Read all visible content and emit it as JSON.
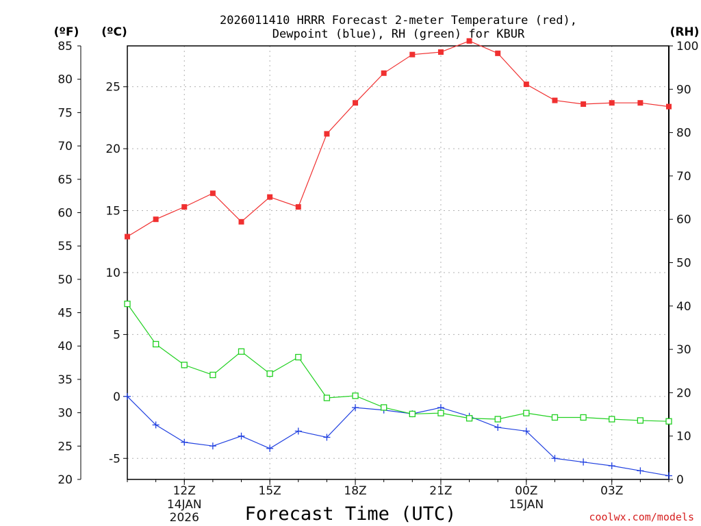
{
  "chart_data": {
    "type": "line",
    "title_lines": [
      "2026011410 HRRR Forecast 2-meter Temperature (red),",
      "Dewpoint (blue), RH (green) for KBUR"
    ],
    "xlabel": "Forecast Time (UTC)",
    "credit": "coolwx.com/models",
    "units": {
      "fahrenheit": "(ºF)",
      "celsius": "(ºC)",
      "rh": "(RH)"
    },
    "x_hours": [
      10,
      11,
      12,
      13,
      14,
      15,
      16,
      17,
      18,
      19,
      20,
      21,
      22,
      23,
      24,
      25,
      26,
      27,
      28,
      29
    ],
    "xlim": [
      10,
      29
    ],
    "celsius_axis": {
      "ylim": [
        -6.7,
        28.3
      ],
      "ticks": [
        -5,
        0,
        5,
        10,
        15,
        20,
        25
      ]
    },
    "fahrenheit_axis": {
      "ylim": [
        20,
        85
      ],
      "ticks": [
        20,
        25,
        30,
        35,
        40,
        45,
        50,
        55,
        60,
        65,
        70,
        75,
        80,
        85
      ]
    },
    "rh_axis": {
      "ylim": [
        0,
        100
      ],
      "ticks": [
        0,
        10,
        20,
        30,
        40,
        50,
        60,
        70,
        80,
        90,
        100
      ]
    },
    "x_ticks": [
      {
        "hour": 12,
        "line1": "12Z",
        "line2": "14JAN",
        "line3": "2026"
      },
      {
        "hour": 15,
        "line1": "15Z",
        "line2": "",
        "line3": ""
      },
      {
        "hour": 18,
        "line1": "18Z",
        "line2": "",
        "line3": ""
      },
      {
        "hour": 21,
        "line1": "21Z",
        "line2": "",
        "line3": ""
      },
      {
        "hour": 24,
        "line1": "00Z",
        "line2": "15JAN",
        "line3": ""
      },
      {
        "hour": 27,
        "line1": "03Z",
        "line2": "",
        "line3": ""
      }
    ],
    "series": [
      {
        "name": "Temperature",
        "axis": "celsius",
        "color": "#f03030",
        "marker": "filled-square",
        "values": [
          12.9,
          14.3,
          15.3,
          16.4,
          14.1,
          16.1,
          15.3,
          21.2,
          23.7,
          26.1,
          27.6,
          27.8,
          28.7,
          27.7,
          25.2,
          23.9,
          23.6,
          23.7,
          23.7,
          23.4
        ]
      },
      {
        "name": "Dewpoint",
        "axis": "celsius",
        "color": "#2040e0",
        "marker": "plus",
        "values": [
          0.0,
          -2.3,
          -3.7,
          -4.0,
          -3.2,
          -4.2,
          -2.8,
          -3.3,
          -0.9,
          -1.1,
          -1.4,
          -0.9,
          -1.6,
          -2.5,
          -2.8,
          -5.0,
          -5.3,
          -5.6,
          -6.0,
          -6.4
        ]
      },
      {
        "name": "RH",
        "axis": "rh",
        "color": "#20d020",
        "marker": "open-square",
        "values": [
          40.5,
          31.2,
          26.4,
          24.1,
          29.5,
          24.4,
          28.2,
          18.8,
          19.3,
          16.6,
          15.1,
          15.3,
          14.1,
          13.9,
          15.3,
          14.3,
          14.3,
          13.9,
          13.6,
          13.4
        ]
      }
    ]
  }
}
